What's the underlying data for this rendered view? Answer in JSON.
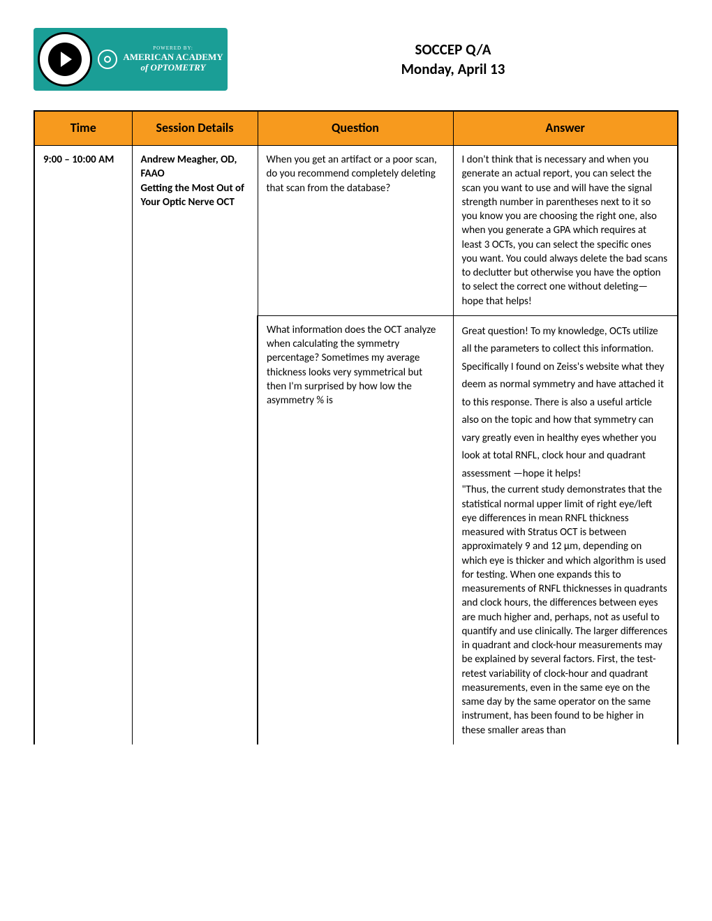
{
  "header": {
    "logo_powered": "POWERED BY:",
    "logo_line1": "AMERICAN ACADEMY",
    "logo_line2": "of OPTOMETRY",
    "title_line1": "SOCCEP Q/A",
    "title_line2": "Monday, April 13"
  },
  "colors": {
    "header_bg": "#f79a1e",
    "border": "#000000",
    "logo_bg": "#1a9e96"
  },
  "table": {
    "columns": [
      "Time",
      "Session Details",
      "Question",
      "Answer"
    ],
    "time": "9:00 – 10:00 AM",
    "session_presenter": "Andrew Meagher, OD, FAAO",
    "session_title": "Getting the Most Out of Your Optic Nerve OCT",
    "rows": [
      {
        "question": "When you get an artifact or a poor scan, do you recommend completely deleting that scan from the database?",
        "answer": "I don't think that is necessary and when you generate an actual report, you can select the scan you want to use and will have the signal strength number in parentheses next to it so you know you are choosing the right one, also when you generate a GPA which requires at least 3 OCTs, you can select the specific ones you want.  You could always delete the bad scans to declutter but otherwise you have the option to select the correct one without deleting—hope that helps!"
      },
      {
        "question": "What information does the OCT analyze when calculating the symmetry percentage? Sometimes my average thickness looks very symmetrical but then I'm surprised by how low the asymmetry % is",
        "answer_p1": "Great question! To my knowledge, OCTs utilize all the parameters to collect this information.  Specifically I found on Zeiss's website what they deem as normal symmetry and have attached it to this response.  There is also a useful article also on the topic and how that symmetry can vary greatly even in healthy eyes whether you look at total RNFL, clock hour and quadrant assessment —hope it helps!",
        "answer_p2": "\"Thus, the current study demonstrates that the statistical normal upper limit of right eye/left eye differences in mean RNFL thickness measured with Stratus OCT is between approximately 9 and 12 µm, depending on which eye is thicker and which algorithm is used for testing. When one expands this to measurements of RNFL thicknesses in quadrants and clock hours, the differences between eyes are much higher and, perhaps, not as useful to quantify and use clinically. The larger differences in quadrant and clock-hour measurements may be explained by several factors. First, the test-retest variability of clock-hour and quadrant measurements, even in the same eye on the same day by the same operator on the same instrument, has been found to be higher in these smaller areas than"
      }
    ]
  }
}
